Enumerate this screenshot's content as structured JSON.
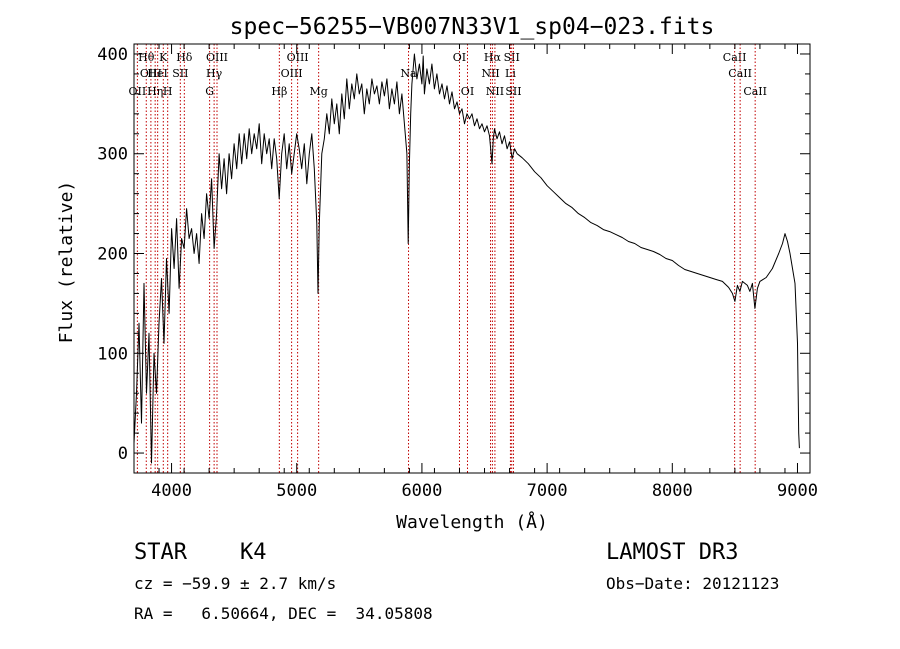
{
  "chart_data": {
    "type": "line",
    "title": "spec−56255−VB007N33V1_sp04−023.fits",
    "xlabel": "Wavelength (Å)",
    "ylabel": "Flux (relative)",
    "xlim": [
      3700,
      9100
    ],
    "ylim": [
      -20,
      410
    ],
    "xticks": [
      4000,
      5000,
      6000,
      7000,
      8000,
      9000
    ],
    "yticks": [
      0,
      100,
      200,
      300,
      400
    ],
    "grid": false,
    "series": [
      {
        "name": "flux",
        "points": [
          [
            3700,
            10
          ],
          [
            3720,
            60
          ],
          [
            3740,
            130
          ],
          [
            3760,
            30
          ],
          [
            3780,
            170
          ],
          [
            3800,
            60
          ],
          [
            3820,
            120
          ],
          [
            3840,
            -10
          ],
          [
            3860,
            100
          ],
          [
            3880,
            60
          ],
          [
            3900,
            130
          ],
          [
            3920,
            175
          ],
          [
            3940,
            110
          ],
          [
            3960,
            195
          ],
          [
            3980,
            140
          ],
          [
            4000,
            225
          ],
          [
            4020,
            185
          ],
          [
            4040,
            235
          ],
          [
            4060,
            165
          ],
          [
            4080,
            215
          ],
          [
            4100,
            205
          ],
          [
            4120,
            245
          ],
          [
            4140,
            215
          ],
          [
            4160,
            225
          ],
          [
            4180,
            200
          ],
          [
            4200,
            220
          ],
          [
            4220,
            190
          ],
          [
            4240,
            240
          ],
          [
            4260,
            215
          ],
          [
            4280,
            260
          ],
          [
            4300,
            235
          ],
          [
            4320,
            275
          ],
          [
            4340,
            205
          ],
          [
            4360,
            240
          ],
          [
            4380,
            300
          ],
          [
            4400,
            265
          ],
          [
            4420,
            295
          ],
          [
            4440,
            260
          ],
          [
            4460,
            300
          ],
          [
            4480,
            275
          ],
          [
            4500,
            310
          ],
          [
            4520,
            285
          ],
          [
            4540,
            320
          ],
          [
            4560,
            290
          ],
          [
            4580,
            320
          ],
          [
            4600,
            295
          ],
          [
            4620,
            325
          ],
          [
            4640,
            300
          ],
          [
            4660,
            320
          ],
          [
            4680,
            305
          ],
          [
            4700,
            330
          ],
          [
            4720,
            290
          ],
          [
            4740,
            320
          ],
          [
            4760,
            300
          ],
          [
            4780,
            315
          ],
          [
            4800,
            285
          ],
          [
            4820,
            315
          ],
          [
            4840,
            295
          ],
          [
            4860,
            255
          ],
          [
            4880,
            300
          ],
          [
            4900,
            320
          ],
          [
            4920,
            285
          ],
          [
            4940,
            310
          ],
          [
            4960,
            280
          ],
          [
            4980,
            300
          ],
          [
            5000,
            320
          ],
          [
            5020,
            305
          ],
          [
            5040,
            285
          ],
          [
            5060,
            310
          ],
          [
            5080,
            270
          ],
          [
            5100,
            300
          ],
          [
            5120,
            320
          ],
          [
            5140,
            285
          ],
          [
            5160,
            230
          ],
          [
            5170,
            160
          ],
          [
            5180,
            230
          ],
          [
            5200,
            300
          ],
          [
            5220,
            315
          ],
          [
            5240,
            340
          ],
          [
            5260,
            320
          ],
          [
            5280,
            355
          ],
          [
            5300,
            330
          ],
          [
            5320,
            350
          ],
          [
            5340,
            320
          ],
          [
            5360,
            360
          ],
          [
            5380,
            335
          ],
          [
            5400,
            375
          ],
          [
            5420,
            345
          ],
          [
            5440,
            370
          ],
          [
            5460,
            355
          ],
          [
            5480,
            380
          ],
          [
            5500,
            360
          ],
          [
            5520,
            370
          ],
          [
            5540,
            340
          ],
          [
            5560,
            365
          ],
          [
            5580,
            350
          ],
          [
            5600,
            375
          ],
          [
            5620,
            360
          ],
          [
            5640,
            368
          ],
          [
            5660,
            350
          ],
          [
            5680,
            372
          ],
          [
            5700,
            358
          ],
          [
            5720,
            375
          ],
          [
            5740,
            345
          ],
          [
            5760,
            365
          ],
          [
            5780,
            350
          ],
          [
            5800,
            372
          ],
          [
            5820,
            340
          ],
          [
            5840,
            360
          ],
          [
            5860,
            330
          ],
          [
            5880,
            300
          ],
          [
            5890,
            210
          ],
          [
            5900,
            290
          ],
          [
            5910,
            340
          ],
          [
            5920,
            370
          ],
          [
            5940,
            400
          ],
          [
            5960,
            375
          ],
          [
            5980,
            390
          ],
          [
            6000,
            370
          ],
          [
            6010,
            398
          ],
          [
            6020,
            360
          ],
          [
            6040,
            385
          ],
          [
            6060,
            370
          ],
          [
            6080,
            390
          ],
          [
            6100,
            365
          ],
          [
            6120,
            380
          ],
          [
            6140,
            360
          ],
          [
            6160,
            370
          ],
          [
            6180,
            355
          ],
          [
            6200,
            368
          ],
          [
            6220,
            350
          ],
          [
            6240,
            362
          ],
          [
            6260,
            345
          ],
          [
            6280,
            352
          ],
          [
            6300,
            340
          ],
          [
            6320,
            345
          ],
          [
            6340,
            330
          ],
          [
            6360,
            340
          ],
          [
            6380,
            335
          ],
          [
            6400,
            340
          ],
          [
            6420,
            328
          ],
          [
            6440,
            335
          ],
          [
            6460,
            325
          ],
          [
            6480,
            330
          ],
          [
            6500,
            322
          ],
          [
            6520,
            328
          ],
          [
            6540,
            318
          ],
          [
            6560,
            290
          ],
          [
            6570,
            315
          ],
          [
            6580,
            325
          ],
          [
            6600,
            315
          ],
          [
            6620,
            322
          ],
          [
            6640,
            310
          ],
          [
            6660,
            318
          ],
          [
            6680,
            305
          ],
          [
            6700,
            312
          ],
          [
            6720,
            295
          ],
          [
            6740,
            305
          ],
          [
            6760,
            300
          ],
          [
            6800,
            296
          ],
          [
            6850,
            290
          ],
          [
            6900,
            282
          ],
          [
            6950,
            276
          ],
          [
            7000,
            268
          ],
          [
            7050,
            262
          ],
          [
            7100,
            256
          ],
          [
            7150,
            250
          ],
          [
            7200,
            246
          ],
          [
            7250,
            240
          ],
          [
            7300,
            236
          ],
          [
            7350,
            231
          ],
          [
            7400,
            228
          ],
          [
            7450,
            224
          ],
          [
            7500,
            222
          ],
          [
            7550,
            219
          ],
          [
            7600,
            216
          ],
          [
            7650,
            212
          ],
          [
            7700,
            210
          ],
          [
            7750,
            206
          ],
          [
            7800,
            204
          ],
          [
            7850,
            202
          ],
          [
            7900,
            199
          ],
          [
            7950,
            195
          ],
          [
            8000,
            193
          ],
          [
            8050,
            188
          ],
          [
            8100,
            184
          ],
          [
            8150,
            182
          ],
          [
            8200,
            180
          ],
          [
            8250,
            178
          ],
          [
            8300,
            176
          ],
          [
            8350,
            174
          ],
          [
            8400,
            172
          ],
          [
            8450,
            166
          ],
          [
            8480,
            160
          ],
          [
            8500,
            152
          ],
          [
            8520,
            168
          ],
          [
            8540,
            162
          ],
          [
            8560,
            172
          ],
          [
            8600,
            168
          ],
          [
            8620,
            162
          ],
          [
            8640,
            170
          ],
          [
            8660,
            145
          ],
          [
            8680,
            165
          ],
          [
            8700,
            172
          ],
          [
            8750,
            176
          ],
          [
            8800,
            185
          ],
          [
            8850,
            200
          ],
          [
            8880,
            210
          ],
          [
            8900,
            220
          ],
          [
            8920,
            212
          ],
          [
            8940,
            200
          ],
          [
            8960,
            185
          ],
          [
            8980,
            170
          ],
          [
            9000,
            110
          ],
          [
            9010,
            20
          ],
          [
            9015,
            5
          ]
        ]
      }
    ],
    "line_markers": [
      {
        "wave": 3727,
        "label": "OII",
        "row": 3
      },
      {
        "wave": 3798,
        "label": "Hθ",
        "row": 1
      },
      {
        "wave": 3835,
        "label": "OIII",
        "row": 2
      },
      {
        "wave": 3869,
        "label": "Hη",
        "row": 3
      },
      {
        "wave": 3889,
        "label": "HeI",
        "row": 2
      },
      {
        "wave": 3934,
        "label": "K",
        "row": 1
      },
      {
        "wave": 3969,
        "label": "H",
        "row": 3
      },
      {
        "wave": 4070,
        "label": "SII",
        "row": 2
      },
      {
        "wave": 4102,
        "label": "Hδ",
        "row": 1
      },
      {
        "wave": 4304,
        "label": "G",
        "row": 3
      },
      {
        "wave": 4340,
        "label": "Hγ",
        "row": 2
      },
      {
        "wave": 4363,
        "label": "OIII",
        "row": 1
      },
      {
        "wave": 4861,
        "label": "Hβ",
        "row": 3
      },
      {
        "wave": 4959,
        "label": "OIII",
        "row": 2
      },
      {
        "wave": 5007,
        "label": "OIII",
        "row": 1
      },
      {
        "wave": 5175,
        "label": "Mg",
        "row": 3
      },
      {
        "wave": 5893,
        "label": "Na",
        "row": 2
      },
      {
        "wave": 6300,
        "label": "OI",
        "row": 1
      },
      {
        "wave": 6364,
        "label": "OI",
        "row": 3
      },
      {
        "wave": 6548,
        "label": "NII",
        "row": 2
      },
      {
        "wave": 6563,
        "label": "Hα",
        "row": 1
      },
      {
        "wave": 6583,
        "label": "NII",
        "row": 3
      },
      {
        "wave": 6707,
        "label": "Li",
        "row": 2
      },
      {
        "wave": 6717,
        "label": "SII",
        "row": 1
      },
      {
        "wave": 6731,
        "label": "SII",
        "row": 3
      },
      {
        "wave": 8498,
        "label": "CaII",
        "row": 1
      },
      {
        "wave": 8542,
        "label": "CaII",
        "row": 2
      },
      {
        "wave": 8662,
        "label": "CaII",
        "row": 3
      }
    ]
  },
  "info": {
    "class": "STAR",
    "subclass": "K4",
    "cz": "cz = −59.9 ± 2.7 km/s",
    "coords": "RA =   6.50664, DEC =  34.05808",
    "survey": "LAMOST DR3",
    "obs_date": "Obs−Date: 20121123"
  },
  "colors": {
    "spectrum": "#000000",
    "line_marker": "#c00000",
    "axis": "#000000"
  }
}
